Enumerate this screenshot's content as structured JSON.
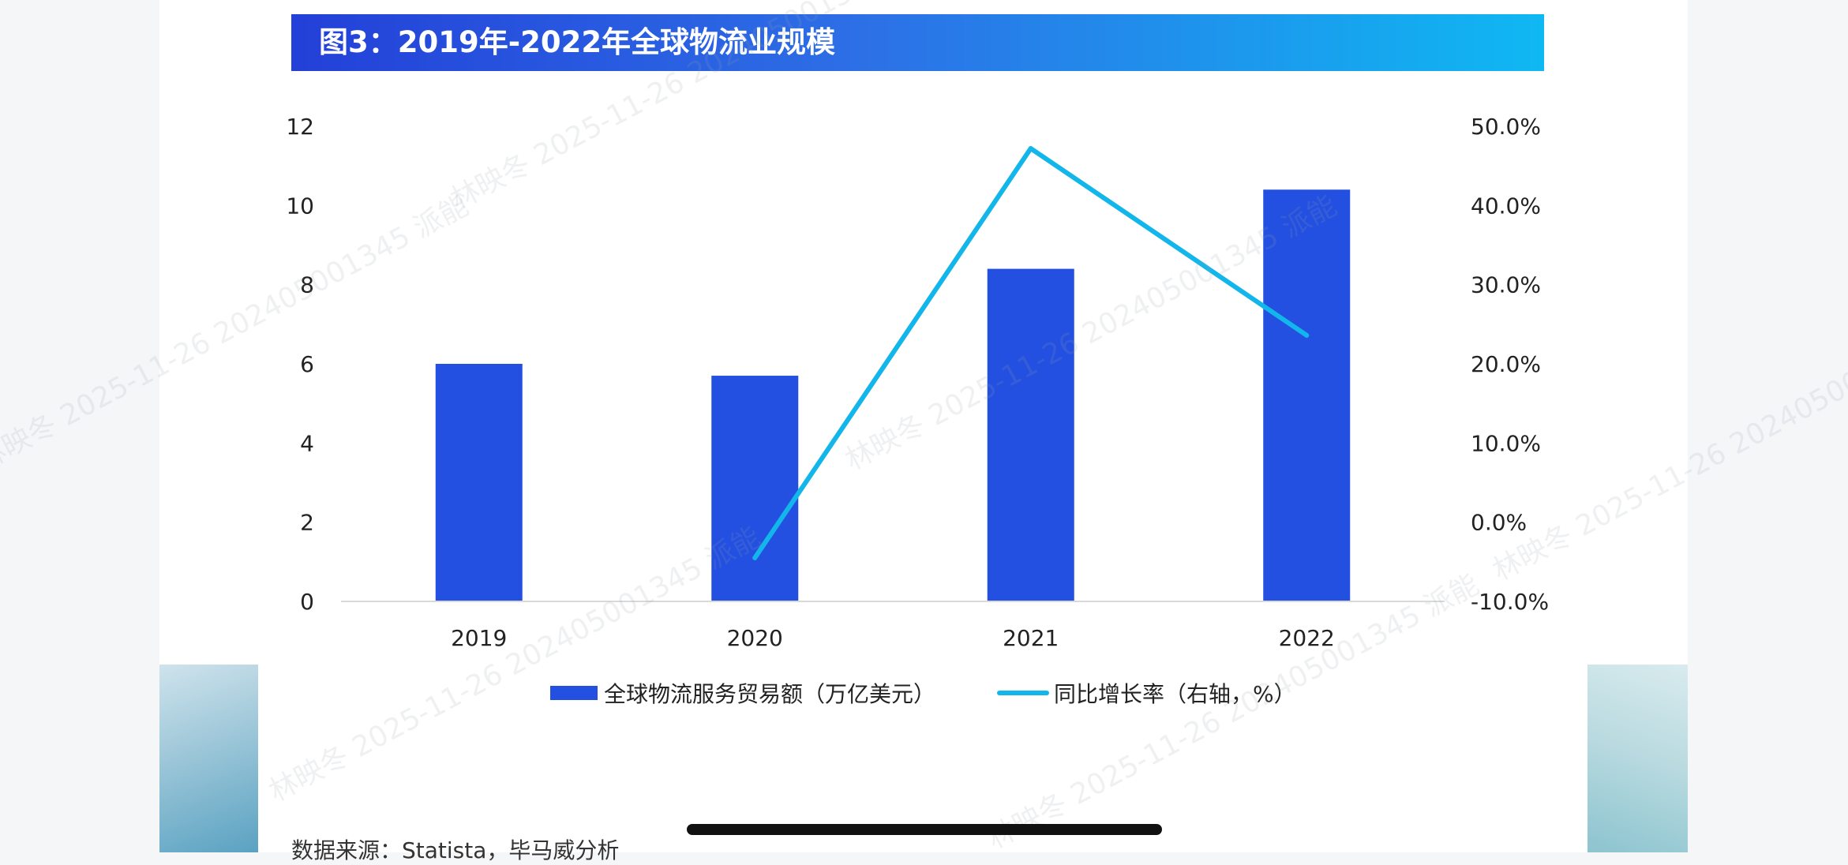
{
  "title": "图3：2019年-2022年全球物流业规模",
  "source": "数据来源：Statista，毕马威分析",
  "watermark": "林映冬 2025-11-26 202405001345 派能",
  "chart_data": {
    "type": "bar",
    "categories": [
      "2019",
      "2020",
      "2021",
      "2022"
    ],
    "series": [
      {
        "name": "全球物流服务贸易额（万亿美元）",
        "type": "bar",
        "axis": "left",
        "color": "#2350e0",
        "values": [
          6.0,
          5.7,
          8.4,
          10.4
        ]
      },
      {
        "name": "同比增长率（右轴，%）",
        "type": "line",
        "axis": "right",
        "color": "#13b6ea",
        "values": [
          null,
          -4.5,
          47.2,
          23.6
        ]
      }
    ],
    "y_left": {
      "lim": [
        0,
        12
      ],
      "ticks": [
        "0",
        "2",
        "4",
        "6",
        "8",
        "10",
        "12"
      ]
    },
    "y_right": {
      "lim": [
        -10,
        50
      ],
      "ticks": [
        "-10.0%",
        "0.0%",
        "10.0%",
        "20.0%",
        "30.0%",
        "40.0%",
        "50.0%"
      ]
    },
    "grid": false,
    "legend": "bottom"
  }
}
